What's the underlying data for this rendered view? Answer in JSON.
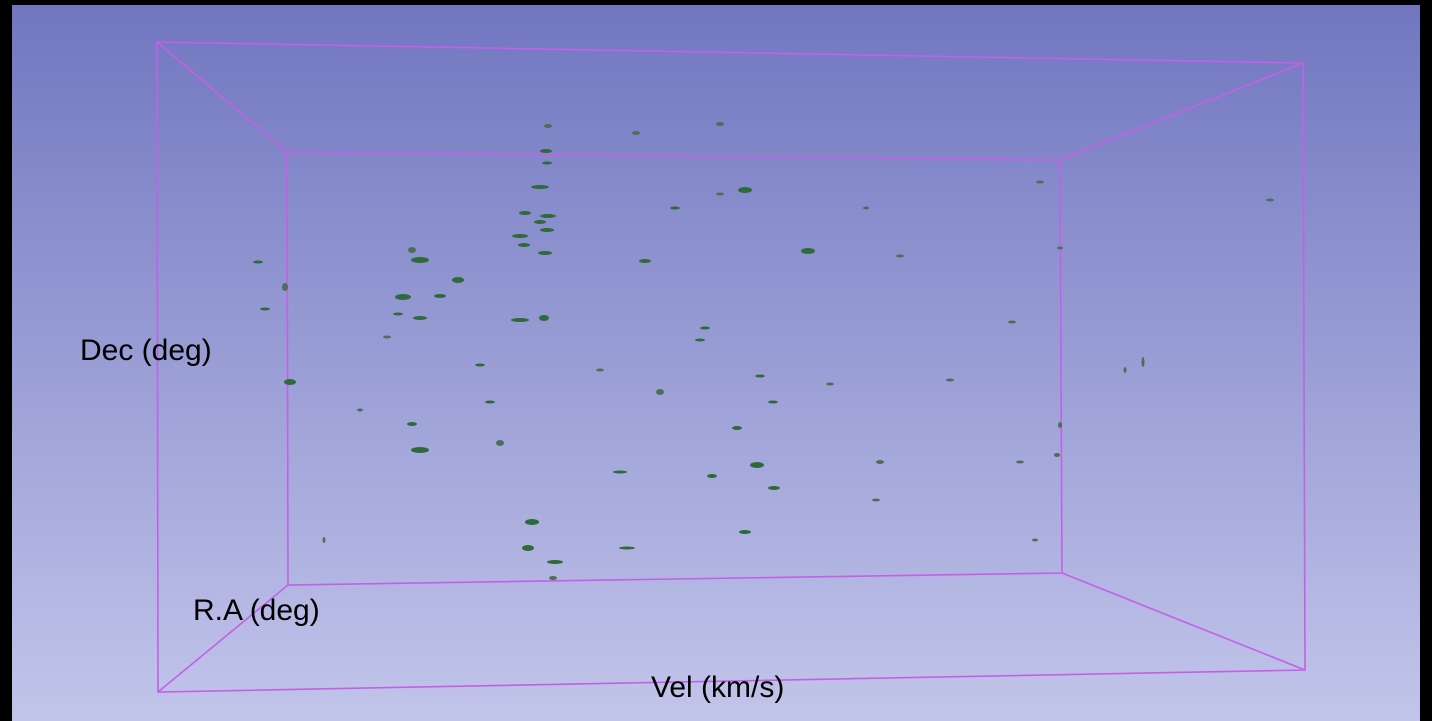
{
  "axes": {
    "dec_label": "Dec (deg)",
    "ra_label": "R.A (deg)",
    "vel_label": "Vel (km/s)"
  }
}
